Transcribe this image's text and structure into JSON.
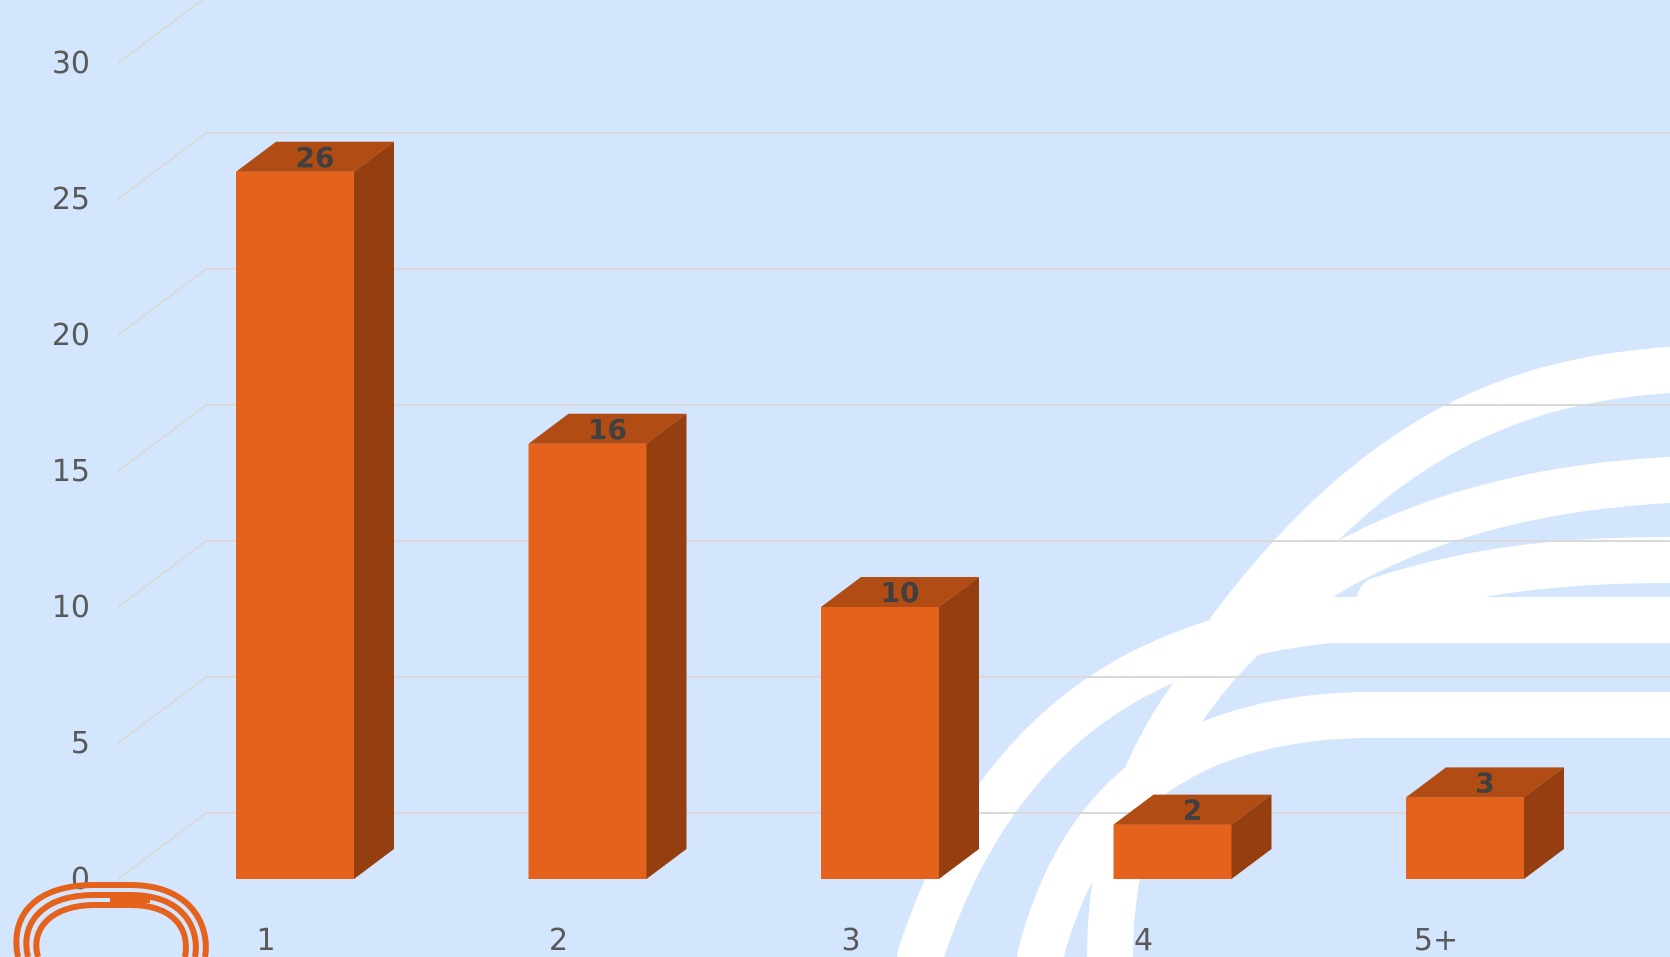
{
  "colors": {
    "background": "#d3e6fd",
    "gridline": "#d9d9d9",
    "bar_front": "#e5621c",
    "bar_side": "#953f10",
    "bar_top": "#b24c15",
    "decoration_white": "#ffffff",
    "logo": "#e5621c"
  },
  "decorations": {
    "background_arcs": "white-arc-lines",
    "corner_logo": "orange-rounded-loops-logo"
  },
  "chart_data": {
    "type": "bar",
    "style": "3d-column",
    "categories": [
      "1",
      "2",
      "3",
      "4",
      "5+"
    ],
    "values": [
      26,
      16,
      10,
      2,
      3
    ],
    "data_labels": [
      "26",
      "16",
      "10",
      "2",
      "3"
    ],
    "yticks": [
      "0",
      "5",
      "10",
      "15",
      "20",
      "25",
      "30"
    ],
    "ylim": [
      0,
      30
    ],
    "grid": true,
    "legend": "none"
  }
}
